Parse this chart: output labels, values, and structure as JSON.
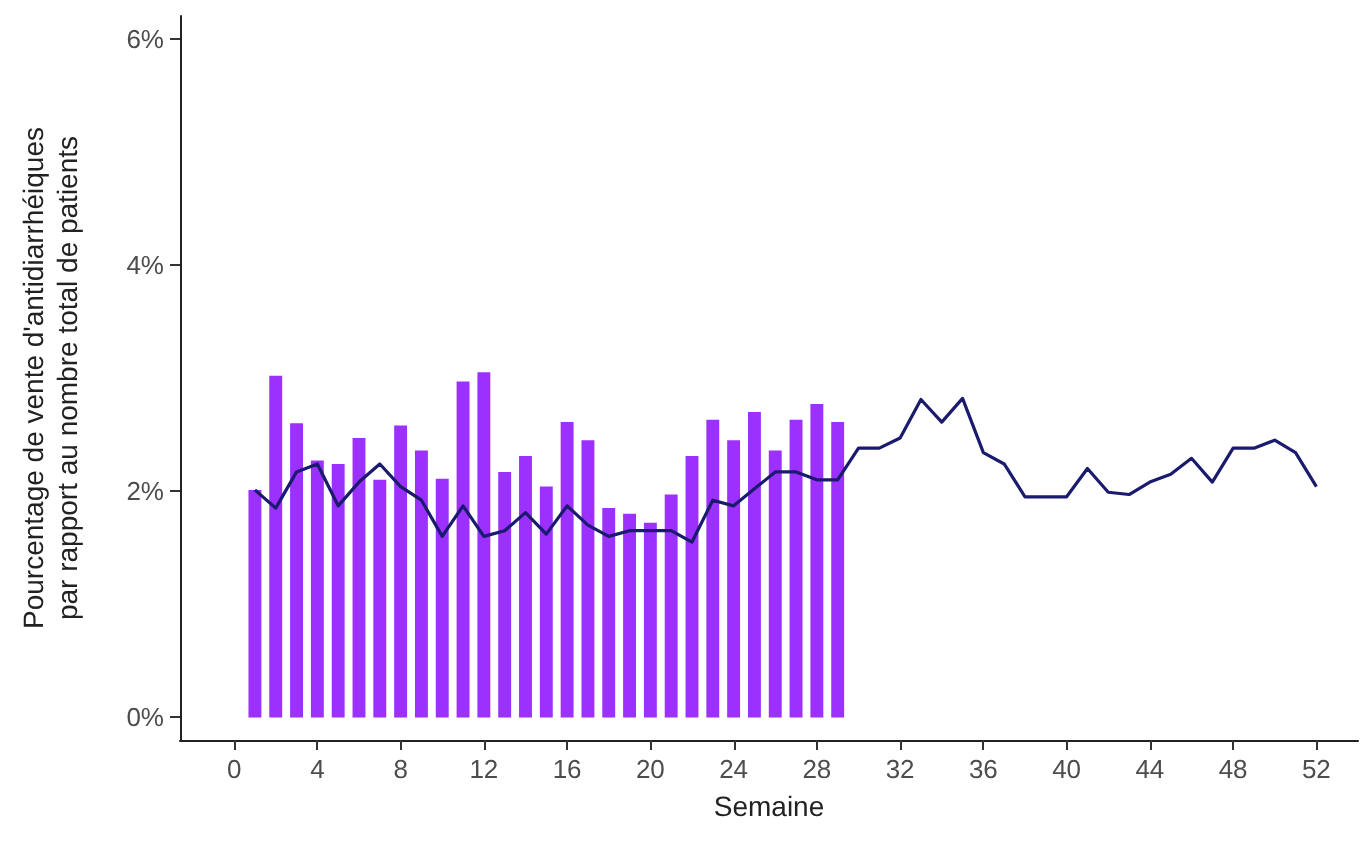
{
  "chart_data": {
    "type": "bar",
    "xlabel": "Semaine",
    "ylabel": "Pourcentage de vente d'antidiarrhéiques\npar rapport au nombre total de patients",
    "xlim": [
      -2.6,
      54
    ],
    "xticks": [
      0,
      4,
      8,
      12,
      16,
      20,
      24,
      28,
      32,
      36,
      40,
      44,
      48,
      52
    ],
    "ylim": [
      -0.2,
      6.2
    ],
    "yticks": [
      {
        "value": 0,
        "label": "0%"
      },
      {
        "value": 2,
        "label": "2%"
      },
      {
        "value": 4,
        "label": "4%"
      },
      {
        "value": 6,
        "label": "6%"
      }
    ],
    "grid": false,
    "series": [
      {
        "color": "#9b30ff",
        "x": [
          1,
          2,
          3,
          4,
          5,
          6,
          7,
          8,
          9,
          10,
          11,
          12,
          13,
          14,
          15,
          16,
          17,
          18,
          19,
          20,
          21,
          22,
          23,
          24,
          25,
          26,
          27,
          28,
          29
        ],
        "values": [
          2.01,
          3.02,
          2.6,
          2.27,
          2.24,
          2.47,
          2.1,
          2.58,
          2.36,
          2.11,
          2.97,
          3.05,
          2.17,
          2.31,
          2.04,
          2.61,
          2.45,
          1.85,
          1.8,
          1.72,
          1.97,
          2.31,
          2.63,
          2.45,
          2.7,
          2.36,
          2.63,
          2.77,
          2.61
        ]
      },
      {
        "type": "line",
        "color": "#1a1a6e",
        "marker": "none",
        "line_style": "solid",
        "x": [
          1,
          2,
          3,
          4,
          5,
          6,
          7,
          8,
          9,
          10,
          11,
          12,
          13,
          14,
          15,
          16,
          17,
          18,
          19,
          20,
          21,
          22,
          23,
          24,
          25,
          26,
          27,
          28,
          29,
          30,
          31,
          32,
          33,
          34,
          35,
          36,
          37,
          38,
          39,
          40,
          41,
          42,
          43,
          44,
          45,
          46,
          47,
          48,
          49,
          50,
          51,
          52
        ],
        "values": [
          2.01,
          1.85,
          2.17,
          2.24,
          1.87,
          2.08,
          2.24,
          2.04,
          1.92,
          1.6,
          1.87,
          1.6,
          1.65,
          1.81,
          1.62,
          1.87,
          1.7,
          1.6,
          1.65,
          1.65,
          1.65,
          1.55,
          1.92,
          1.87,
          2.02,
          2.17,
          2.17,
          2.1,
          2.1,
          2.38,
          2.38,
          2.47,
          2.81,
          2.61,
          2.82,
          2.34,
          2.24,
          1.95,
          1.95,
          1.95,
          2.2,
          1.99,
          1.97,
          2.08,
          2.15,
          2.29,
          2.08,
          2.38,
          2.38,
          2.45,
          2.34,
          2.04
        ]
      }
    ]
  }
}
